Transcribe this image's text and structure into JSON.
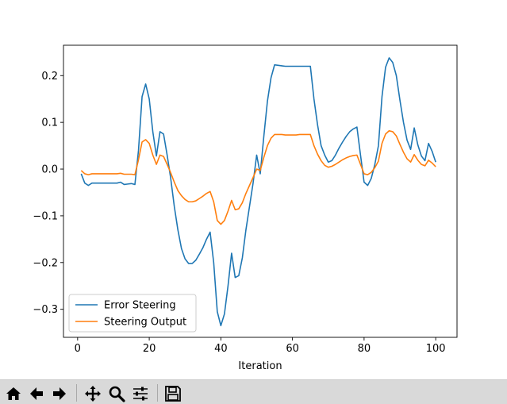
{
  "chart_data": {
    "type": "line",
    "title": "",
    "xlabel": "Iteration",
    "ylabel": "",
    "xlim": [
      -3.95,
      105.95
    ],
    "ylim": [
      -0.36,
      0.265
    ],
    "xticks": [
      0,
      20,
      40,
      60,
      80,
      100
    ],
    "yticks": [
      -0.3,
      -0.2,
      -0.1,
      0.0,
      0.1,
      0.2
    ],
    "ytick_labels": [
      "−0.3",
      "−0.2",
      "−0.1",
      "0.0",
      "0.1",
      "0.2"
    ],
    "grid": false,
    "legend": "lower-left",
    "series": [
      {
        "name": "Error Steering",
        "color": "#1f77b4",
        "x": [
          1,
          2,
          3,
          4,
          5,
          6,
          7,
          8,
          9,
          10,
          11,
          12,
          13,
          14,
          15,
          16,
          17,
          18,
          19,
          20,
          21,
          22,
          23,
          24,
          25,
          26,
          27,
          28,
          29,
          30,
          31,
          32,
          33,
          34,
          35,
          36,
          37,
          38,
          39,
          40,
          41,
          42,
          43,
          44,
          45,
          46,
          47,
          48,
          49,
          50,
          51,
          52,
          53,
          54,
          55,
          56,
          57,
          58,
          59,
          60,
          61,
          62,
          63,
          64,
          65,
          66,
          67,
          68,
          69,
          70,
          71,
          72,
          73,
          74,
          75,
          76,
          77,
          78,
          79,
          80,
          81,
          82,
          83,
          84,
          85,
          86,
          87,
          88,
          89,
          90,
          91,
          92,
          93,
          94,
          95,
          96,
          97,
          98,
          99,
          100
        ],
        "y": [
          -0.01,
          -0.03,
          -0.035,
          -0.03,
          -0.03,
          -0.03,
          -0.03,
          -0.03,
          -0.03,
          -0.03,
          -0.03,
          -0.028,
          -0.033,
          -0.032,
          -0.031,
          -0.033,
          0.04,
          0.155,
          0.182,
          0.15,
          0.08,
          0.028,
          0.08,
          0.075,
          0.03,
          -0.02,
          -0.08,
          -0.13,
          -0.17,
          -0.192,
          -0.202,
          -0.202,
          -0.195,
          -0.182,
          -0.168,
          -0.15,
          -0.135,
          -0.2,
          -0.305,
          -0.335,
          -0.31,
          -0.25,
          -0.18,
          -0.232,
          -0.228,
          -0.19,
          -0.13,
          -0.08,
          -0.03,
          0.03,
          -0.01,
          0.07,
          0.145,
          0.195,
          0.223,
          0.222,
          0.221,
          0.22,
          0.22,
          0.22,
          0.22,
          0.22,
          0.22,
          0.22,
          0.22,
          0.15,
          0.095,
          0.05,
          0.03,
          0.015,
          0.018,
          0.03,
          0.045,
          0.058,
          0.07,
          0.08,
          0.086,
          0.09,
          0.03,
          -0.028,
          -0.035,
          -0.02,
          0.01,
          0.05,
          0.155,
          0.218,
          0.238,
          0.228,
          0.2,
          0.148,
          0.1,
          0.062,
          0.042,
          0.088,
          0.052,
          0.028,
          0.018,
          0.055,
          0.038,
          0.015
        ]
      },
      {
        "name": "Steering Output",
        "color": "#ff7f0e",
        "x": [
          1,
          2,
          3,
          4,
          5,
          6,
          7,
          8,
          9,
          10,
          11,
          12,
          13,
          14,
          15,
          16,
          17,
          18,
          19,
          20,
          21,
          22,
          23,
          24,
          25,
          26,
          27,
          28,
          29,
          30,
          31,
          32,
          33,
          34,
          35,
          36,
          37,
          38,
          39,
          40,
          41,
          42,
          43,
          44,
          45,
          46,
          47,
          48,
          49,
          50,
          51,
          52,
          53,
          54,
          55,
          56,
          57,
          58,
          59,
          60,
          61,
          62,
          63,
          64,
          65,
          66,
          67,
          68,
          69,
          70,
          71,
          72,
          73,
          74,
          75,
          76,
          77,
          78,
          79,
          80,
          81,
          82,
          83,
          84,
          85,
          86,
          87,
          88,
          89,
          90,
          91,
          92,
          93,
          94,
          95,
          96,
          97,
          98,
          99,
          100
        ],
        "y": [
          -0.003,
          -0.01,
          -0.012,
          -0.01,
          -0.01,
          -0.01,
          -0.01,
          -0.01,
          -0.01,
          -0.01,
          -0.01,
          -0.009,
          -0.011,
          -0.011,
          -0.011,
          -0.012,
          0.02,
          0.058,
          0.063,
          0.055,
          0.03,
          0.01,
          0.03,
          0.027,
          0.01,
          -0.008,
          -0.028,
          -0.046,
          -0.057,
          -0.065,
          -0.07,
          -0.07,
          -0.068,
          -0.063,
          -0.058,
          -0.052,
          -0.048,
          -0.07,
          -0.11,
          -0.118,
          -0.11,
          -0.09,
          -0.067,
          -0.087,
          -0.085,
          -0.072,
          -0.052,
          -0.035,
          -0.018,
          0.0,
          -0.003,
          0.025,
          0.05,
          0.066,
          0.074,
          0.074,
          0.074,
          0.073,
          0.073,
          0.073,
          0.073,
          0.074,
          0.074,
          0.074,
          0.074,
          0.05,
          0.032,
          0.018,
          0.008,
          0.004,
          0.006,
          0.01,
          0.015,
          0.02,
          0.024,
          0.027,
          0.029,
          0.03,
          0.01,
          -0.01,
          -0.012,
          -0.007,
          0.003,
          0.017,
          0.055,
          0.075,
          0.082,
          0.08,
          0.071,
          0.053,
          0.036,
          0.022,
          0.015,
          0.031,
          0.019,
          0.01,
          0.007,
          0.019,
          0.013,
          0.005
        ]
      }
    ]
  },
  "toolbar": {
    "buttons": [
      {
        "name": "home-button",
        "icon": "home-icon"
      },
      {
        "name": "back-button",
        "icon": "arrow-left-icon"
      },
      {
        "name": "forward-button",
        "icon": "arrow-right-icon"
      },
      {
        "name": "pan-button",
        "icon": "move-icon"
      },
      {
        "name": "zoom-button",
        "icon": "magnifier-icon"
      },
      {
        "name": "configure-subplots-button",
        "icon": "sliders-icon"
      },
      {
        "name": "save-button",
        "icon": "floppy-disk-icon"
      }
    ]
  }
}
